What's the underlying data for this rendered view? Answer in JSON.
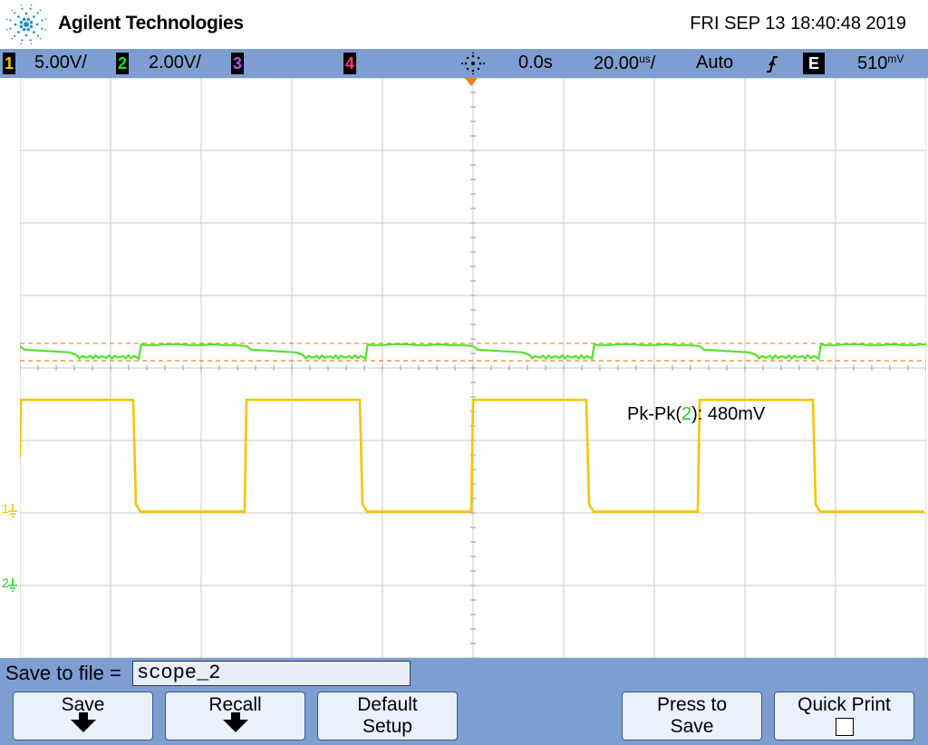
{
  "header": {
    "brand": "Agilent Technologies",
    "datetime": "FRI SEP 13 18:40:48 2019"
  },
  "status": {
    "ch1": {
      "num": "1",
      "scale": "5.00V/",
      "color": "#f5c400"
    },
    "ch2": {
      "num": "2",
      "scale": "2.00V/",
      "color": "#22dd22"
    },
    "ch3": {
      "num": "3",
      "color": "#b050e0"
    },
    "ch4": {
      "num": "4",
      "color": "#ff3d6e"
    },
    "delay": "0.0s",
    "timebase_value": "20.00",
    "timebase_unit": "us",
    "timebase_suffix": "/",
    "trigger_mode": "Auto",
    "trigger_source": "E",
    "trigger_level_value": "510",
    "trigger_level_unit": "mV"
  },
  "ground_markers": {
    "ch1": "1",
    "ch2": "2"
  },
  "measurement": {
    "prefix": "Pk-Pk(",
    "channel": "2",
    "suffix": "): 480mV"
  },
  "savefile": {
    "label": "Save to file =",
    "value": "scope_2"
  },
  "softkeys": {
    "save": "Save",
    "recall": "Recall",
    "default_line1": "Default",
    "default_line2": "Setup",
    "press_line1": "Press to",
    "press_line2": "Save",
    "quick_print": "Quick Print"
  },
  "colors": {
    "ch1": "#f5c400",
    "ch2": "#55e030",
    "trigger_marker": "#f08020",
    "grid": "#c8c8c8",
    "softkey_bg": "#7e9ed1"
  },
  "traces": {
    "ch1": {
      "unit": "V/div",
      "period_div": 2.5,
      "high_duration_div": 1.25,
      "high_level_div": -0.38,
      "low_level_div": 0.95,
      "ground_level_div": 1.0,
      "first_rise_time_div": 0
    },
    "ch2": {
      "unit": "div",
      "mean_level_div": 3.78,
      "pk_pk_div": 0.24,
      "ground_level_div": 2.02
    }
  }
}
